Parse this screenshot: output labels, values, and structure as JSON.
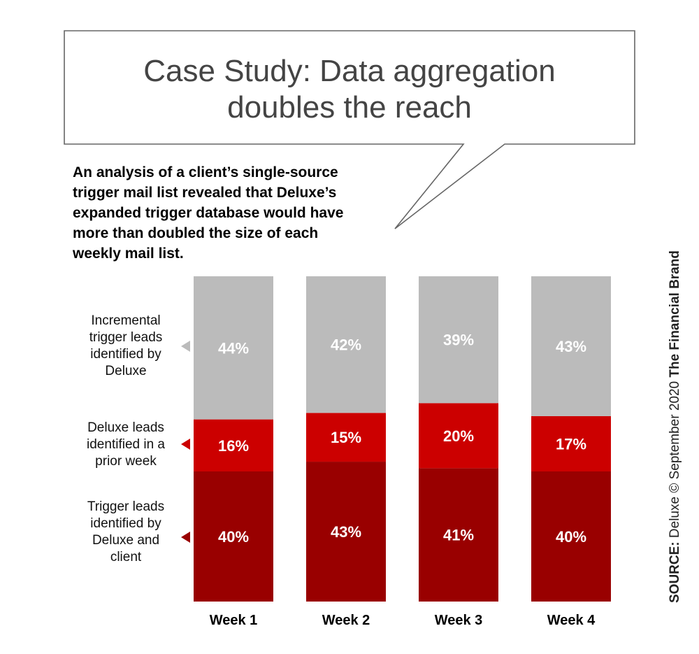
{
  "title_lines": [
    "Case Study: Data aggregation",
    "doubles the reach"
  ],
  "subtitle_lines": [
    "An analysis of a client’s single-source",
    "trigger mail list revealed that Deluxe’s",
    "expanded trigger database would have",
    "more than doubled the size of each",
    "weekly mail list."
  ],
  "source": {
    "label": "SOURCE:",
    "text": "Deluxe © September 2020",
    "brand": "The Financial Brand"
  },
  "colors": {
    "incremental": "#bbbbbb",
    "prior_week": "#cc0000",
    "both": "#990000",
    "bubble_stroke": "#666666"
  },
  "chart_data": {
    "type": "bar",
    "stacked": true,
    "categories": [
      "Week 1",
      "Week 2",
      "Week 3",
      "Week 4"
    ],
    "series": [
      {
        "name": "Trigger leads identified by Deluxe and client",
        "values": [
          40,
          43,
          41,
          40
        ],
        "labels": [
          "40%",
          "43%",
          "41%",
          "40%"
        ]
      },
      {
        "name": "Deluxe leads identified in a prior week",
        "values": [
          16,
          15,
          20,
          17
        ],
        "labels": [
          "16%",
          "15%",
          "20%",
          "17%"
        ]
      },
      {
        "name": "Incremental trigger leads identified by Deluxe",
        "values": [
          44,
          42,
          39,
          43
        ],
        "labels": [
          "44%",
          "42%",
          "39%",
          "43%"
        ]
      }
    ],
    "series_label_lines": [
      [
        "Trigger leads",
        "identified by",
        "Deluxe and",
        "client"
      ],
      [
        "Deluxe leads",
        "identified in a",
        "prior week"
      ],
      [
        "Incremental",
        "trigger leads",
        "identified by",
        "Deluxe"
      ]
    ],
    "ylim": [
      0,
      100
    ],
    "grid": false,
    "legend": "left-side labels"
  }
}
